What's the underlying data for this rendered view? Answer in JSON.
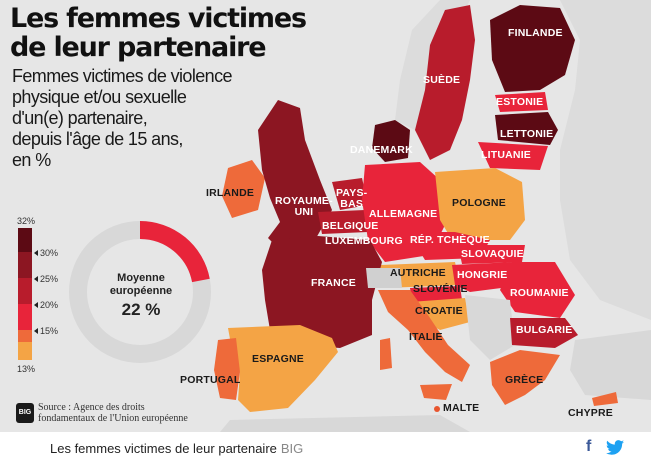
{
  "title_line1": "Les femmes victimes",
  "title_line2": "de leur partenaire",
  "subtitle_lines": [
    "Femmes victimes de violence",
    "physique et/ou sexuelle",
    "d'un(e) partenaire,",
    "depuis l'âge de 15 ans,",
    "en %"
  ],
  "countries": {
    "finlande": "FINLANDE",
    "suede": "SUÈDE",
    "estonie": "ESTONIE",
    "lettonie": "LETTONIE",
    "lituanie": "LITUANIE",
    "danemark": "DANEMARK",
    "irlande": "IRLANDE",
    "royaume_uni_1": "ROYAUME-",
    "royaume_uni_2": "UNI",
    "pays_bas_1": "PAYS-",
    "pays_bas_2": "BAS",
    "belgique": "BELGIQUE",
    "luxembourg": "LUXEMBOURG",
    "allemagne": "ALLEMAGNE",
    "pologne": "POLOGNE",
    "rep_tcheque": "RÉP. TCHÈQUE",
    "slovaquie": "SLOVAQUIE",
    "autriche": "AUTRICHE",
    "hongrie": "HONGRIE",
    "slovenie": "SLOVÉNIE",
    "roumanie": "ROUMANIE",
    "croatie": "CROATIE",
    "bulgarie": "BULGARIE",
    "france": "FRANCE",
    "italie": "ITALIE",
    "espagne": "ESPAGNE",
    "portugal": "PORTUGAL",
    "grece": "GRÈCE",
    "malte": "MALTE",
    "chypre": "CHYPRE"
  },
  "legend": {
    "max": "32%",
    "ticks": [
      "30%",
      "25%",
      "20%",
      "15%"
    ],
    "min": "13%",
    "colors": [
      "#5c0a14",
      "#8c1622",
      "#b81c2c",
      "#e8243a",
      "#ee6a3a",
      "#f4a445"
    ]
  },
  "donut": {
    "label_line1": "Moyenne",
    "label_line2": "européenne",
    "value": "22 %",
    "percent": 22,
    "fill_color": "#e8243a",
    "track_color": "#d8d8d8"
  },
  "source_line1": "Source : Agence des droits",
  "source_line2": "fondamentaux de l'Union européenne",
  "logo_text": "BIG",
  "caption": "Les femmes victimes de leur partenaire",
  "caption_brand": "BIG",
  "social": {
    "facebook": "f",
    "facebook_icon": "facebook-icon",
    "twitter_icon": "twitter-icon",
    "facebook_color": "#3b5998",
    "twitter_color": "#1da1f2"
  }
}
